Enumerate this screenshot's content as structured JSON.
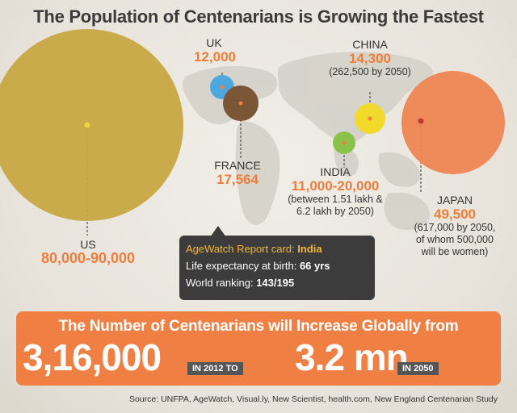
{
  "title": "The Population of Centenarians is Growing the Fastest",
  "chart_data": {
    "type": "bubble",
    "title": "The Population of Centenarians is Growing the Fastest",
    "series": [
      {
        "country": "US",
        "value_label": "80,000-90,000",
        "value": 85000,
        "color": "#c7a843"
      },
      {
        "country": "UK",
        "value_label": "12,000",
        "value": 12000,
        "color": "#4ea8e0"
      },
      {
        "country": "FRANCE",
        "value_label": "17,564",
        "value": 17564,
        "color": "#7a5536"
      },
      {
        "country": "CHINA",
        "value_label": "14,300",
        "value": 14300,
        "note": "(262,500 by 2050)",
        "color": "#f2da2a"
      },
      {
        "country": "INDIA",
        "value_label": "11,000-20,000",
        "value": 15500,
        "note": "(between 1.51 lakh & 6.2 lakh by 2050)",
        "color": "#8bc34a"
      },
      {
        "country": "JAPAN",
        "value_label": "49,500",
        "value": 49500,
        "note": "(617,000 by 2050, of whom 500,000 will be women)",
        "color": "#ef8553"
      }
    ]
  },
  "labels": {
    "us": {
      "name": "US",
      "value": "80,000-90,000"
    },
    "uk": {
      "name": "UK",
      "value": "12,000"
    },
    "france": {
      "name": "FRANCE",
      "value": "17,564"
    },
    "china": {
      "name": "CHINA",
      "value": "14,300",
      "note": "(262,500 by 2050)"
    },
    "india": {
      "name": "INDIA",
      "value": "11,000-20,000",
      "note1": "(between 1.51 lakh &",
      "note2": "6.2 lakh by 2050)"
    },
    "japan": {
      "name": "JAPAN",
      "value": "49,500",
      "note1": "(617,000 by 2050,",
      "note2": "of whom 500,000",
      "note3": "will be women)"
    }
  },
  "card": {
    "title_prefix": "AgeWatch Report card:",
    "title_country": "India",
    "life_label": "Life expectancy at birth:",
    "life_value": "66 yrs",
    "rank_label": "World ranking:",
    "rank_value": "143/195"
  },
  "banner": {
    "headline": "The Number of Centenarians will Increase Globally from",
    "from_value": "3,16,000",
    "from_tag": "IN 2012 TO",
    "to_value": "3.2 mn",
    "to_tag": "IN 2050"
  },
  "source": "Source: UNFPA, AgeWatch, Visual.ly, New Scientist, health.com, New England Centenarian Study"
}
